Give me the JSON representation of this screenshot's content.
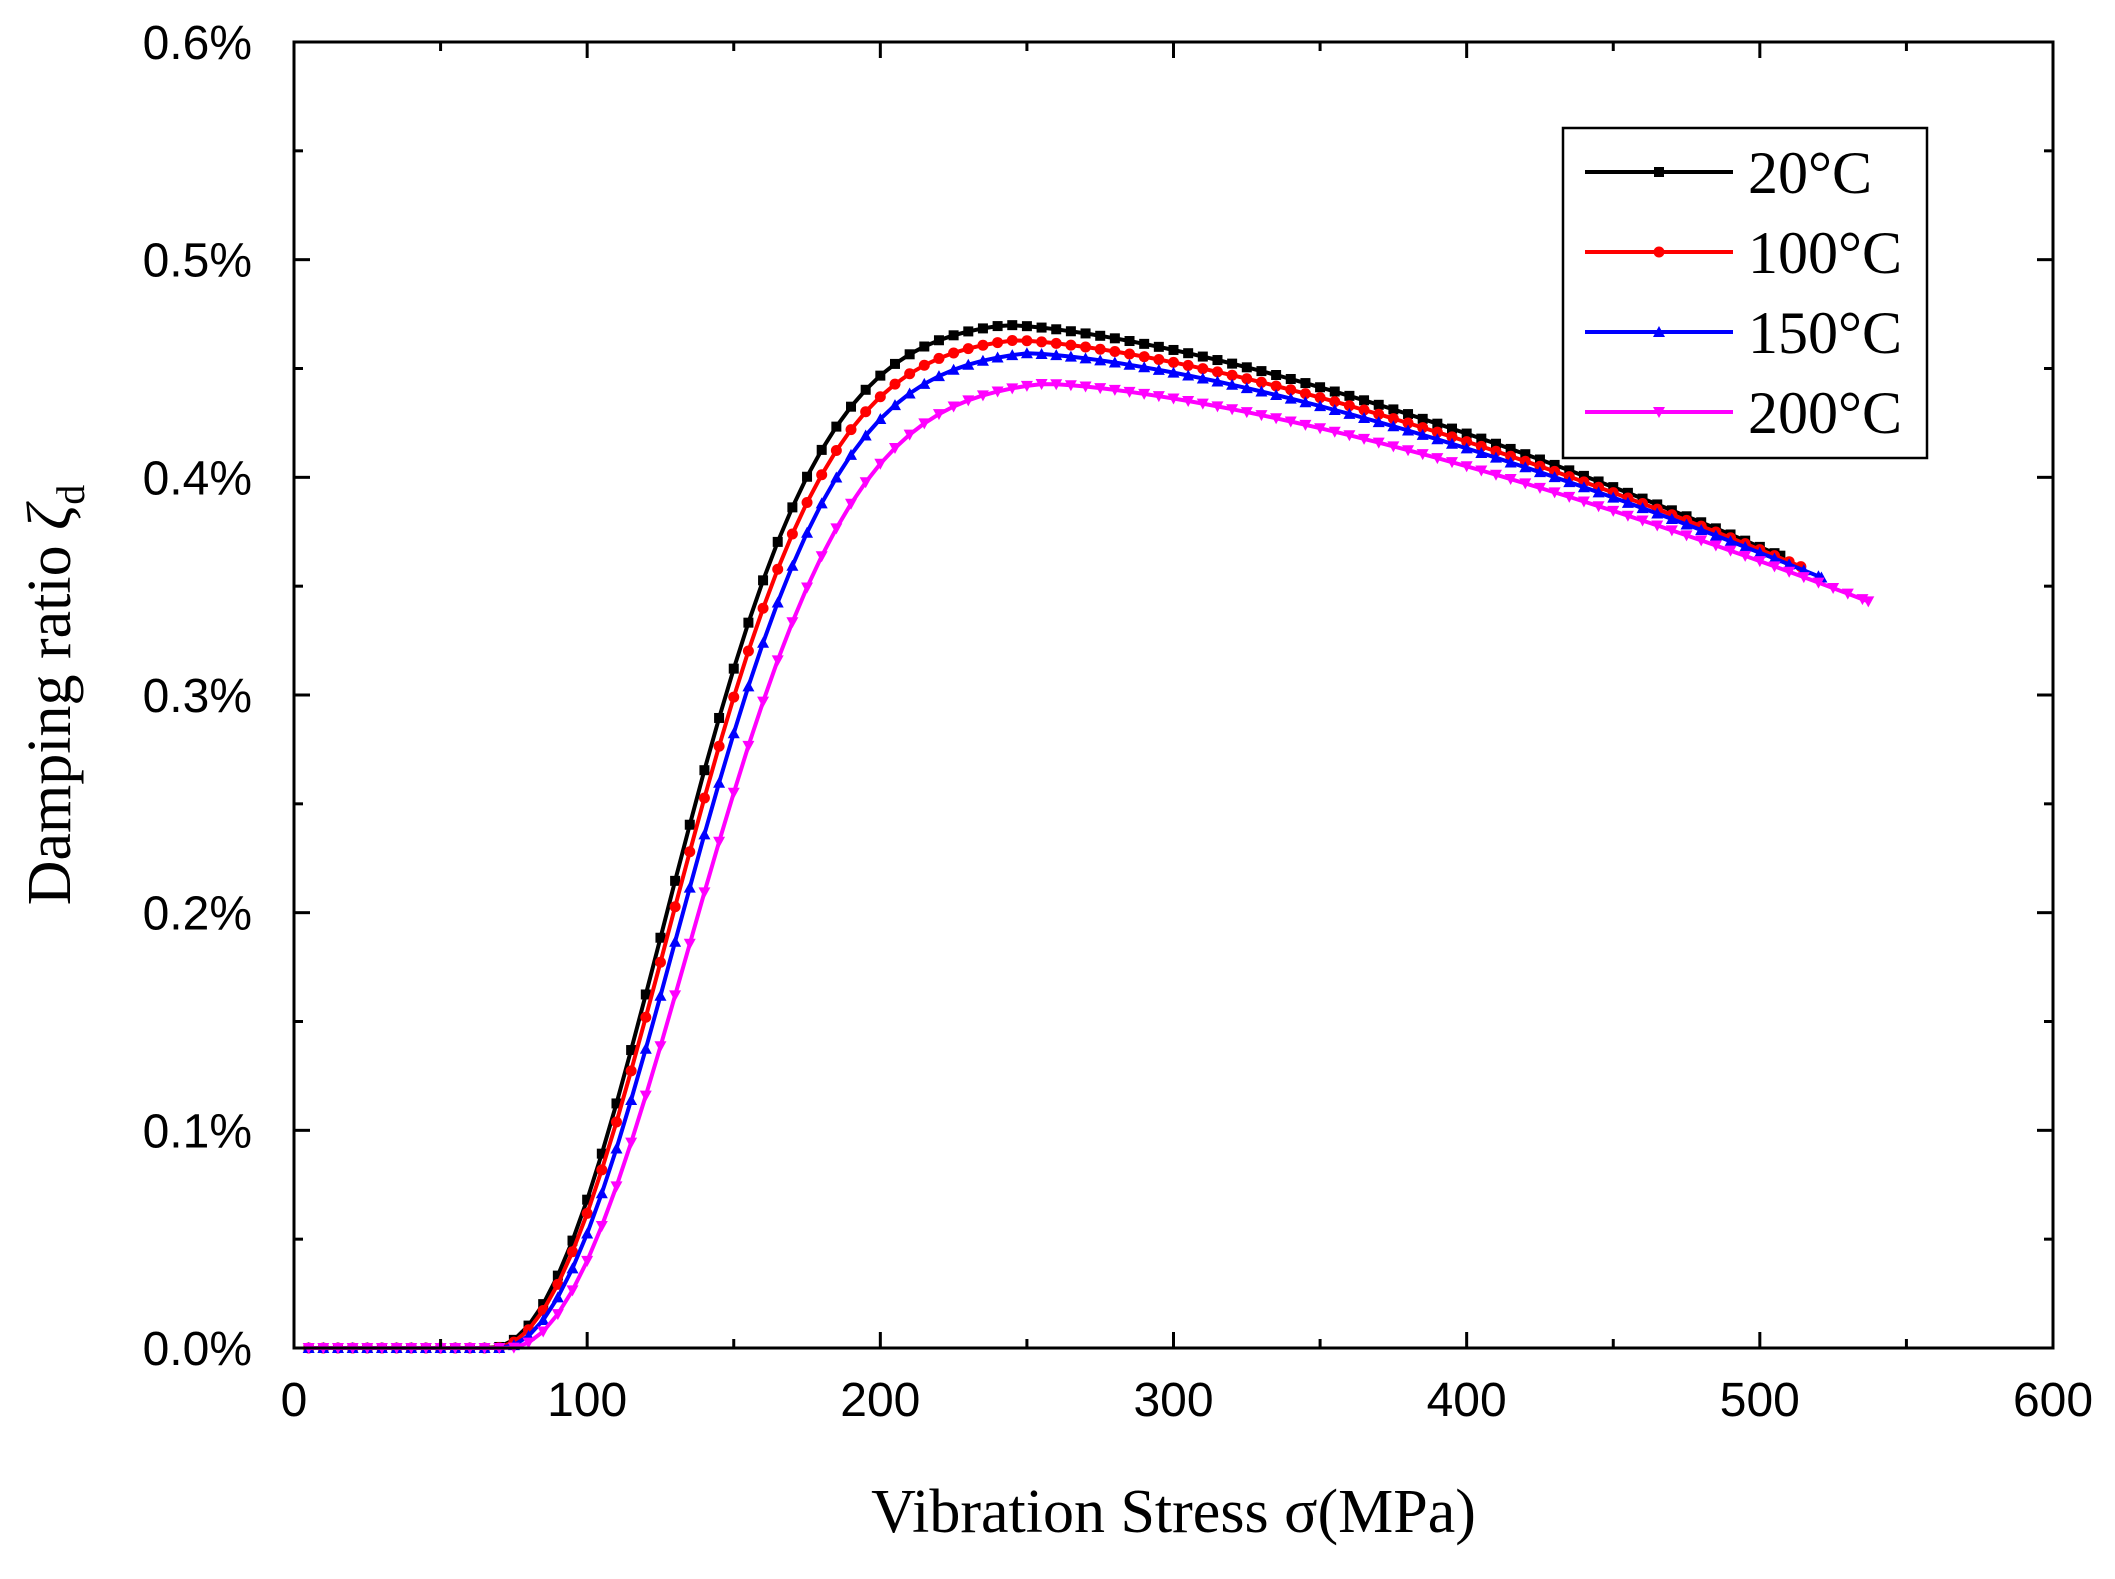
{
  "chart_data": {
    "type": "line",
    "title": "",
    "xlabel": "Vibration Stress σ(MPa)",
    "ylabel_main": "Damping ratio ",
    "ylabel_symbol": "ζ",
    "ylabel_subscript": "d",
    "xlim": [
      0,
      600
    ],
    "ylim": [
      0,
      0.6
    ],
    "x_ticks": [
      0,
      100,
      200,
      300,
      400,
      500,
      600
    ],
    "x_tick_labels": [
      "0",
      "100",
      "200",
      "300",
      "400",
      "500",
      "600"
    ],
    "y_ticks": [
      0,
      0.1,
      0.2,
      0.3,
      0.4,
      0.5,
      0.6
    ],
    "y_tick_labels": [
      "0.0%",
      "0.1%",
      "0.2%",
      "0.3%",
      "0.4%",
      "0.5%",
      "0.6%"
    ],
    "grid": false,
    "legend_position": "top-right",
    "series": [
      {
        "name": "20°C",
        "color": "#000000",
        "marker": "square",
        "threshold": 67,
        "peak_x": 243,
        "peak_y": 0.47,
        "end_x": 507,
        "end_y": 0.364,
        "step": 5
      },
      {
        "name": "100°C",
        "color": "#ff0000",
        "marker": "circle",
        "threshold": 68,
        "peak_x": 246,
        "peak_y": 0.463,
        "end_x": 514,
        "end_y": 0.359,
        "step": 5
      },
      {
        "name": "150°C",
        "color": "#0000ff",
        "marker": "triangle-up",
        "threshold": 70,
        "peak_x": 250,
        "peak_y": 0.457,
        "end_x": 521,
        "end_y": 0.354,
        "step": 5
      },
      {
        "name": "200°C",
        "color": "#ff00ff",
        "marker": "triangle-down",
        "threshold": 73,
        "peak_x": 256,
        "peak_y": 0.443,
        "end_x": 537,
        "end_y": 0.343,
        "step": 5
      }
    ]
  }
}
